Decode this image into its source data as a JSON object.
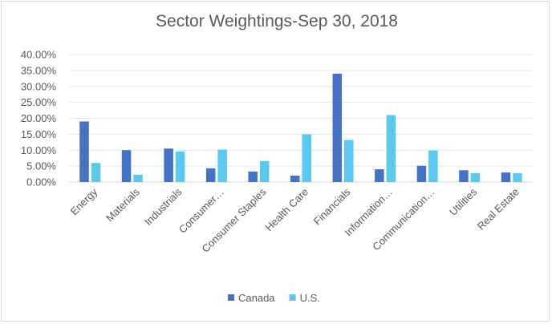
{
  "chart_data": {
    "type": "bar",
    "title": "Sector Weightings-Sep 30, 2018",
    "categories": [
      "Energy",
      "Materials",
      "Industrials",
      "Consumer…",
      "Consumer Staples",
      "Health Care",
      "Financials",
      "Information…",
      "Communication…",
      "Utilities",
      "Real Estate"
    ],
    "series": [
      {
        "name": "Canada",
        "color": "#4472c4",
        "values": [
          19.0,
          10.0,
          10.5,
          4.3,
          3.3,
          2.0,
          34.0,
          4.0,
          5.1,
          3.7,
          3.0
        ]
      },
      {
        "name": "U.S.",
        "color": "#5bc8f0",
        "values": [
          6.0,
          2.3,
          9.6,
          10.2,
          6.6,
          15.0,
          13.2,
          21.0,
          9.9,
          2.8,
          2.8
        ]
      }
    ],
    "ylim": [
      0,
      40
    ],
    "yticks": [
      "0.00%",
      "5.00%",
      "10.00%",
      "15.00%",
      "20.00%",
      "25.00%",
      "30.00%",
      "35.00%",
      "40.00%"
    ],
    "grid": true,
    "legend_position": "bottom"
  }
}
